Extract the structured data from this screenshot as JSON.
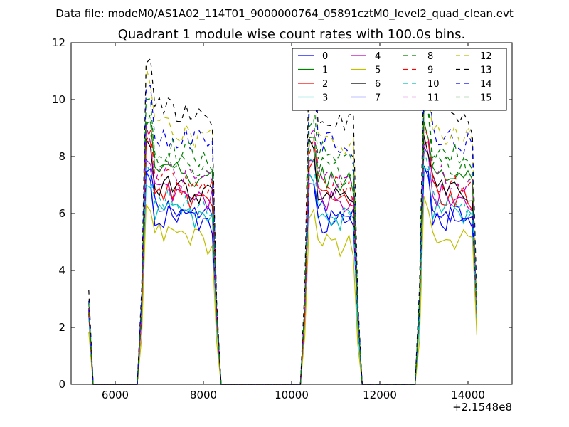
{
  "chart_data": {
    "type": "line",
    "supertitle": "Data file: modeM0/AS1A02_114T01_9000000764_05891cztM0_level2_quad_clean.evt",
    "title": "Quadrant 1 module wise count rates with 100.0s bins.",
    "xlabel": "",
    "ylabel": "",
    "x_offset_label": "+2.1548e8",
    "xlim": [
      5000,
      15000
    ],
    "ylim": [
      0,
      12
    ],
    "xticks": [
      6000,
      8000,
      10000,
      12000,
      14000
    ],
    "xtick_labels": [
      "6000",
      "8000",
      "10000",
      "12000",
      "14000"
    ],
    "yticks": [
      0,
      2,
      4,
      6,
      8,
      10,
      12
    ],
    "ytick_labels": [
      "0",
      "2",
      "4",
      "6",
      "8",
      "10",
      "12"
    ],
    "legend_position": "top-right",
    "legend_columns": 4,
    "segments": [
      {
        "start": 5400,
        "end": 5400
      },
      {
        "start": 6700,
        "end": 8200
      },
      {
        "start": 10400,
        "end": 11400
      },
      {
        "start": 13000,
        "end": 14100
      }
    ],
    "series": [
      {
        "name": "0",
        "color": "#0000ff",
        "dash": "solid",
        "level": 6.3,
        "edge": 2.6
      },
      {
        "name": "1",
        "color": "#008000",
        "dash": "solid",
        "level": 7.6,
        "edge": 2.5
      },
      {
        "name": "2",
        "color": "#ff0000",
        "dash": "solid",
        "level": 6.9,
        "edge": 2.4
      },
      {
        "name": "3",
        "color": "#00bfbf",
        "dash": "solid",
        "level": 6.2,
        "edge": 2.3
      },
      {
        "name": "4",
        "color": "#bf00bf",
        "dash": "solid",
        "level": 6.8,
        "edge": 2.5
      },
      {
        "name": "5",
        "color": "#bfbf00",
        "dash": "solid",
        "level": 5.3,
        "edge": 1.7
      },
      {
        "name": "6",
        "color": "#000000",
        "dash": "solid",
        "level": 7.1,
        "edge": 2.6
      },
      {
        "name": "7",
        "color": "#0000ff",
        "dash": "solid",
        "level": 6.0,
        "edge": 2.8
      },
      {
        "name": "8",
        "color": "#008000",
        "dash": "dashed",
        "level": 7.9,
        "edge": 2.7
      },
      {
        "name": "9",
        "color": "#ff0000",
        "dash": "dashed",
        "level": 7.3,
        "edge": 2.6
      },
      {
        "name": "10",
        "color": "#00bfbf",
        "dash": "dashed",
        "level": 6.6,
        "edge": 2.4
      },
      {
        "name": "11",
        "color": "#bf00bf",
        "dash": "dashed",
        "level": 7.5,
        "edge": 2.7
      },
      {
        "name": "12",
        "color": "#bfbf00",
        "dash": "dashed",
        "level": 9.1,
        "edge": 3.0
      },
      {
        "name": "13",
        "color": "#000000",
        "dash": "dashed",
        "level": 9.8,
        "edge": 3.3
      },
      {
        "name": "14",
        "color": "#0000ff",
        "dash": "dashed",
        "level": 8.9,
        "edge": 2.9
      },
      {
        "name": "15",
        "color": "#008000",
        "dash": "dashed",
        "level": 8.4,
        "edge": 2.8
      }
    ],
    "colors": {
      "background": "#ffffff",
      "frame": "#000000",
      "legend_border": "#000000"
    }
  }
}
